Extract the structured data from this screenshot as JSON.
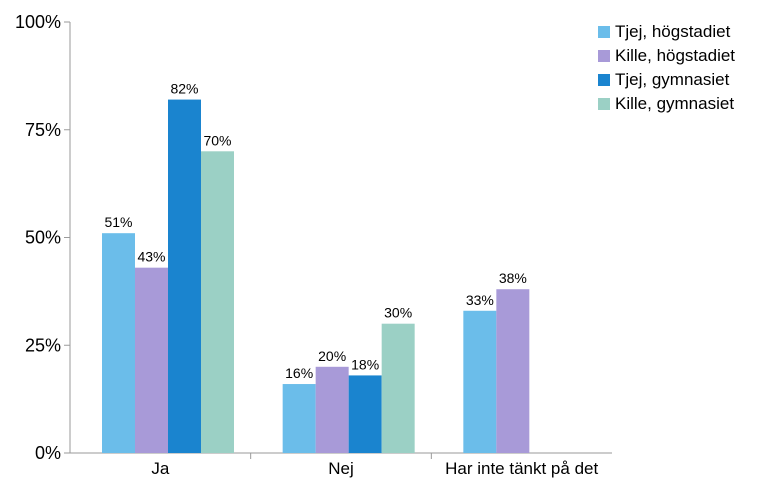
{
  "chart_data": {
    "type": "bar",
    "categories": [
      "Ja",
      "Nej",
      "Har inte tänkt på det"
    ],
    "series": [
      {
        "name": "Tjej, högstadiet",
        "color": "#6BBDEA",
        "values": [
          51,
          16,
          33
        ],
        "labels": [
          "51%",
          "16%",
          "33%"
        ]
      },
      {
        "name": "Kille, högstadiet",
        "color": "#A89AD8",
        "values": [
          43,
          20,
          38
        ],
        "labels": [
          "43%",
          "20%",
          "38%"
        ]
      },
      {
        "name": "Tjej, gymnasiet",
        "color": "#1A84CF",
        "values": [
          82,
          18,
          null
        ],
        "labels": [
          "82%",
          "18%",
          ""
        ]
      },
      {
        "name": "Kille, gymnasiet",
        "color": "#9BD0C5",
        "values": [
          70,
          30,
          null
        ],
        "labels": [
          "70%",
          "30%",
          ""
        ]
      }
    ],
    "yticks": [
      "0%",
      "25%",
      "50%",
      "75%",
      "100%"
    ],
    "ylim": [
      0,
      100
    ],
    "unit": "%",
    "legend_position": "top-right",
    "grid": false
  }
}
